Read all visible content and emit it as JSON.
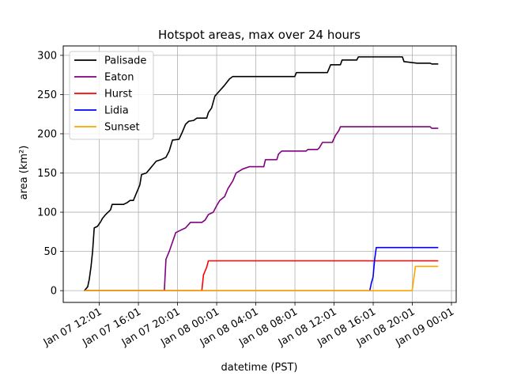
{
  "chart_data": {
    "type": "line",
    "title": "Hotspot areas, max over 24 hours",
    "xlabel": "datetime (PST)",
    "ylabel": "area (km²)",
    "grid": true,
    "legend_position": "top-left",
    "xlim": [
      "2025-01-07 08:20",
      "2025-01-09 00:30"
    ],
    "ylim": [
      -15,
      312
    ],
    "x_ticks": [
      {
        "t": "2025-01-07 12:01",
        "label": "Jan 07 12:01"
      },
      {
        "t": "2025-01-07 16:01",
        "label": "Jan 07 16:01"
      },
      {
        "t": "2025-01-07 20:01",
        "label": "Jan 07 20:01"
      },
      {
        "t": "2025-01-08 00:01",
        "label": "Jan 08 00:01"
      },
      {
        "t": "2025-01-08 04:01",
        "label": "Jan 08 04:01"
      },
      {
        "t": "2025-01-08 08:01",
        "label": "Jan 08 08:01"
      },
      {
        "t": "2025-01-08 12:01",
        "label": "Jan 08 12:01"
      },
      {
        "t": "2025-01-08 16:01",
        "label": "Jan 08 16:01"
      },
      {
        "t": "2025-01-08 20:01",
        "label": "Jan 08 20:01"
      },
      {
        "t": "2025-01-09 00:01",
        "label": "Jan 09 00:01"
      }
    ],
    "y_ticks": [
      0,
      50,
      100,
      150,
      200,
      250,
      300
    ],
    "series": [
      {
        "name": "Palisade",
        "color": "#000000",
        "points": [
          [
            "2025-01-07 10:30",
            0
          ],
          [
            "2025-01-07 10:50",
            5
          ],
          [
            "2025-01-07 11:00",
            15
          ],
          [
            "2025-01-07 11:10",
            30
          ],
          [
            "2025-01-07 11:20",
            50
          ],
          [
            "2025-01-07 11:30",
            80
          ],
          [
            "2025-01-07 11:50",
            82
          ],
          [
            "2025-01-07 12:10",
            88
          ],
          [
            "2025-01-07 12:20",
            92
          ],
          [
            "2025-01-07 12:40",
            97
          ],
          [
            "2025-01-07 13:10",
            103
          ],
          [
            "2025-01-07 13:20",
            110
          ],
          [
            "2025-01-07 14:30",
            110
          ],
          [
            "2025-01-07 14:50",
            112
          ],
          [
            "2025-01-07 15:10",
            115
          ],
          [
            "2025-01-07 15:30",
            115
          ],
          [
            "2025-01-07 15:50",
            125
          ],
          [
            "2025-01-07 16:10",
            135
          ],
          [
            "2025-01-07 16:20",
            148
          ],
          [
            "2025-01-07 16:50",
            150
          ],
          [
            "2025-01-07 17:10",
            155
          ],
          [
            "2025-01-07 17:30",
            160
          ],
          [
            "2025-01-07 17:50",
            165
          ],
          [
            "2025-01-07 18:20",
            167
          ],
          [
            "2025-01-07 18:50",
            170
          ],
          [
            "2025-01-07 19:10",
            178
          ],
          [
            "2025-01-07 19:30",
            192
          ],
          [
            "2025-01-07 20:10",
            193
          ],
          [
            "2025-01-07 20:30",
            202
          ],
          [
            "2025-01-07 20:50",
            212
          ],
          [
            "2025-01-07 21:10",
            216
          ],
          [
            "2025-01-07 21:40",
            217
          ],
          [
            "2025-01-07 22:00",
            220
          ],
          [
            "2025-01-07 23:00",
            220
          ],
          [
            "2025-01-07 23:10",
            227
          ],
          [
            "2025-01-07 23:30",
            233
          ],
          [
            "2025-01-07 23:50",
            248
          ],
          [
            "2025-01-08 00:20",
            255
          ],
          [
            "2025-01-08 00:50",
            262
          ],
          [
            "2025-01-08 01:20",
            270
          ],
          [
            "2025-01-08 01:40",
            273
          ],
          [
            "2025-01-08 08:00",
            273
          ],
          [
            "2025-01-08 08:10",
            278
          ],
          [
            "2025-01-08 11:20",
            278
          ],
          [
            "2025-01-08 11:40",
            288
          ],
          [
            "2025-01-08 12:40",
            288
          ],
          [
            "2025-01-08 12:50",
            294
          ],
          [
            "2025-01-08 14:20",
            294
          ],
          [
            "2025-01-08 14:30",
            298
          ],
          [
            "2025-01-08 19:00",
            298
          ],
          [
            "2025-01-08 19:10",
            292
          ],
          [
            "2025-01-08 20:30",
            290
          ],
          [
            "2025-01-08 21:50",
            290
          ],
          [
            "2025-01-08 22:00",
            289
          ],
          [
            "2025-01-08 22:40",
            289
          ]
        ]
      },
      {
        "name": "Eaton",
        "color": "#800080",
        "points": [
          [
            "2025-01-07 10:30",
            0
          ],
          [
            "2025-01-07 18:40",
            0
          ],
          [
            "2025-01-07 18:50",
            40
          ],
          [
            "2025-01-07 19:10",
            50
          ],
          [
            "2025-01-07 19:30",
            62
          ],
          [
            "2025-01-07 19:50",
            74
          ],
          [
            "2025-01-07 20:20",
            77
          ],
          [
            "2025-01-07 20:50",
            80
          ],
          [
            "2025-01-07 21:20",
            87
          ],
          [
            "2025-01-07 22:30",
            87
          ],
          [
            "2025-01-07 22:50",
            90
          ],
          [
            "2025-01-07 23:10",
            97
          ],
          [
            "2025-01-07 23:40",
            100
          ],
          [
            "2025-01-08 00:00",
            108
          ],
          [
            "2025-01-08 00:20",
            115
          ],
          [
            "2025-01-08 00:50",
            120
          ],
          [
            "2025-01-08 01:10",
            130
          ],
          [
            "2025-01-08 01:40",
            140
          ],
          [
            "2025-01-08 02:00",
            150
          ],
          [
            "2025-01-08 02:40",
            155
          ],
          [
            "2025-01-08 03:20",
            158
          ],
          [
            "2025-01-08 04:50",
            158
          ],
          [
            "2025-01-08 05:00",
            167
          ],
          [
            "2025-01-08 06:10",
            167
          ],
          [
            "2025-01-08 06:20",
            174
          ],
          [
            "2025-01-08 06:40",
            178
          ],
          [
            "2025-01-08 09:10",
            178
          ],
          [
            "2025-01-08 09:20",
            180
          ],
          [
            "2025-01-08 10:20",
            180
          ],
          [
            "2025-01-08 10:30",
            182
          ],
          [
            "2025-01-08 10:50",
            189
          ],
          [
            "2025-01-08 11:50",
            189
          ],
          [
            "2025-01-08 12:10",
            198
          ],
          [
            "2025-01-08 12:30",
            204
          ],
          [
            "2025-01-08 12:40",
            209
          ],
          [
            "2025-01-08 21:50",
            209
          ],
          [
            "2025-01-08 22:00",
            207
          ],
          [
            "2025-01-08 22:40",
            207
          ]
        ]
      },
      {
        "name": "Hurst",
        "color": "#ff0000",
        "points": [
          [
            "2025-01-07 10:30",
            0
          ],
          [
            "2025-01-07 22:30",
            0
          ],
          [
            "2025-01-07 22:40",
            20
          ],
          [
            "2025-01-07 22:50",
            25
          ],
          [
            "2025-01-07 23:00",
            30
          ],
          [
            "2025-01-07 23:10",
            38
          ],
          [
            "2025-01-08 22:40",
            38
          ]
        ]
      },
      {
        "name": "Lidia",
        "color": "#0000ff",
        "points": [
          [
            "2025-01-07 10:30",
            0
          ],
          [
            "2025-01-08 15:40",
            0
          ],
          [
            "2025-01-08 15:50",
            10
          ],
          [
            "2025-01-08 16:00",
            17
          ],
          [
            "2025-01-08 16:10",
            40
          ],
          [
            "2025-01-08 16:20",
            55
          ],
          [
            "2025-01-08 22:40",
            55
          ]
        ]
      },
      {
        "name": "Sunset",
        "color": "#ffa500",
        "points": [
          [
            "2025-01-07 10:30",
            0
          ],
          [
            "2025-01-08 20:00",
            0
          ],
          [
            "2025-01-08 20:10",
            15
          ],
          [
            "2025-01-08 20:20",
            31
          ],
          [
            "2025-01-08 22:40",
            31
          ]
        ]
      }
    ]
  }
}
